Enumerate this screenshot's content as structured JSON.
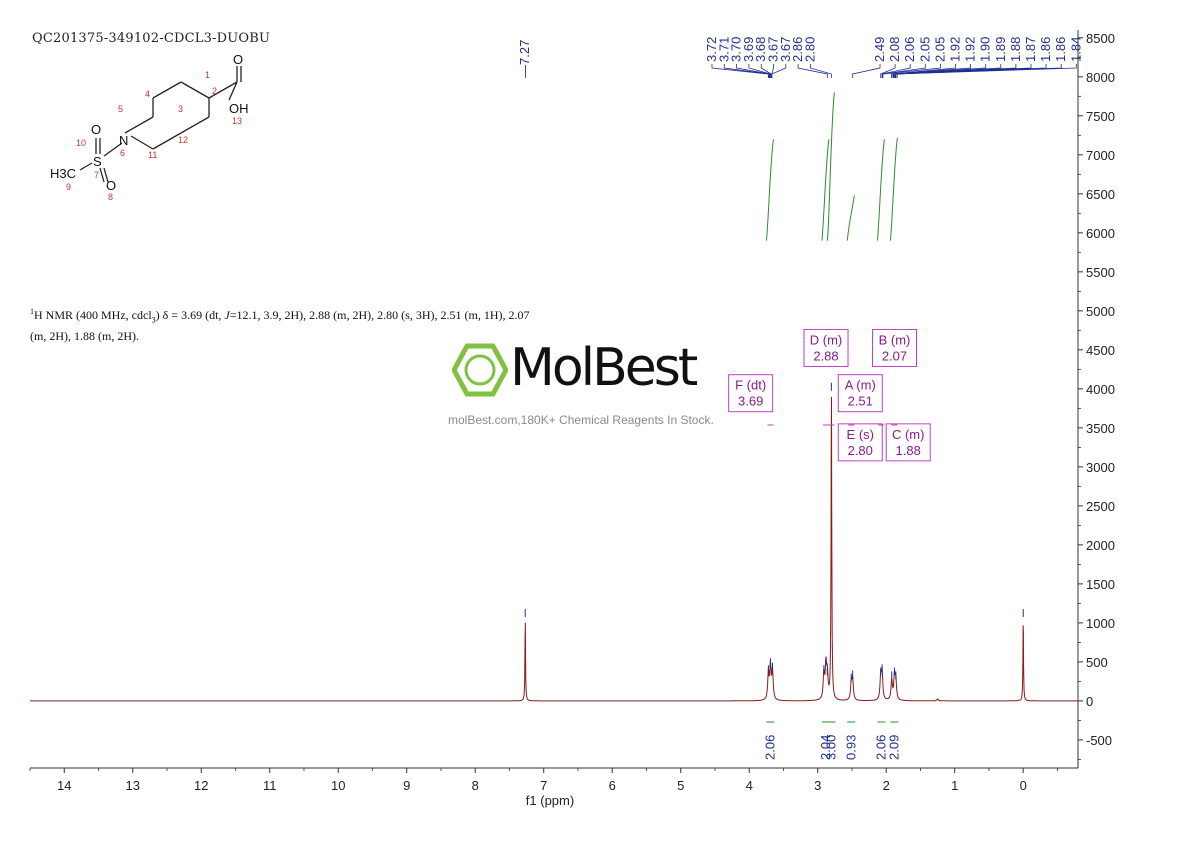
{
  "sample_id": "QC201375-349102-CDCL3-DUOBU",
  "nmr_description": {
    "prefix": "1",
    "text_a": "H NMR (400 MHz, cdcl",
    "sub": "3",
    "text_b": ") δ = 3.69 (dt, ",
    "italic": "J",
    "text_c": "=12.1, 3.9, 2H), 2.88 (m, 2H), 2.80 (s, 3H), 2.51 (m, 1H), 2.07",
    "line2": "(m, 2H), 1.88 (m, 2H)."
  },
  "logo": {
    "word": "MolBest",
    "tagline": "molBest.com,180K+ Chemical Reagents In Stock.",
    "color": "#7fc241"
  },
  "molecule": {
    "atoms": [
      {
        "label": "O",
        "num": "1"
      },
      {
        "label": "",
        "num": "2"
      },
      {
        "label": "",
        "num": "3"
      },
      {
        "label": "",
        "num": "4"
      },
      {
        "label": "",
        "num": "5"
      },
      {
        "label": "N",
        "num": "6"
      },
      {
        "label": "S",
        "num": "7"
      },
      {
        "label": "O",
        "num": "8"
      },
      {
        "label": "H3C",
        "num": "9"
      },
      {
        "label": "O",
        "num": "10"
      },
      {
        "label": "",
        "num": "11"
      },
      {
        "label": "",
        "num": "12"
      },
      {
        "label": "OH",
        "num": "13"
      }
    ]
  },
  "chart_data": {
    "type": "line",
    "xlabel": "f1 (ppm)",
    "ylabel": "",
    "xlim": [
      14.5,
      -0.8
    ],
    "ylim": [
      -860,
      8600
    ],
    "x_reversed": true,
    "x_ticks": [
      14,
      13,
      12,
      11,
      10,
      9,
      8,
      7,
      6,
      5,
      4,
      3,
      2,
      1,
      0
    ],
    "y_ticks": [
      -500,
      0,
      500,
      1000,
      1500,
      2000,
      2500,
      3000,
      3500,
      4000,
      4500,
      5000,
      5500,
      6000,
      6500,
      7000,
      7500,
      8000,
      8500
    ],
    "series": [
      {
        "color": "#8b1a1a",
        "peaks": [
          {
            "ppm": 7.27,
            "height": 1050
          },
          {
            "ppm": 3.72,
            "height": 330
          },
          {
            "ppm": 3.69,
            "height": 420
          },
          {
            "ppm": 3.66,
            "height": 360
          },
          {
            "ppm": 2.91,
            "height": 330
          },
          {
            "ppm": 2.88,
            "height": 420
          },
          {
            "ppm": 2.86,
            "height": 300
          },
          {
            "ppm": 2.8,
            "height": 3950
          },
          {
            "ppm": 2.51,
            "height": 220
          },
          {
            "ppm": 2.49,
            "height": 260
          },
          {
            "ppm": 2.08,
            "height": 300
          },
          {
            "ppm": 2.06,
            "height": 340
          },
          {
            "ppm": 1.92,
            "height": 250
          },
          {
            "ppm": 1.88,
            "height": 300
          },
          {
            "ppm": 1.86,
            "height": 250
          },
          {
            "ppm": 1.25,
            "height": 25
          },
          {
            "ppm": 0.0,
            "height": 1050
          }
        ]
      }
    ],
    "top_peak_labels": [
      "7.27",
      "3.72",
      "3.71",
      "3.70",
      "3.69",
      "3.68",
      "3.67",
      "3.67",
      "2.86",
      "2.80",
      "2.49",
      "2.08",
      "2.06",
      "2.05",
      "2.05",
      "1.92",
      "1.92",
      "1.90",
      "1.89",
      "1.88",
      "1.87",
      "1.86",
      "1.86",
      "1.84"
    ],
    "multiplets": [
      {
        "letter": "F",
        "type": "dt",
        "shift": "3.69",
        "label": "F (dt)"
      },
      {
        "letter": "D",
        "type": "m",
        "shift": "2.88",
        "label": "D (m)"
      },
      {
        "letter": "B",
        "type": "m",
        "shift": "2.07",
        "label": "B (m)"
      },
      {
        "letter": "A",
        "type": "m",
        "shift": "2.51",
        "label": "A (m)"
      },
      {
        "letter": "E",
        "type": "s",
        "shift": "2.80",
        "label": "E (s)"
      },
      {
        "letter": "C",
        "type": "m",
        "shift": "1.88",
        "label": "C (m)"
      }
    ],
    "integrals": [
      {
        "ppm": 3.69,
        "value": "2.06"
      },
      {
        "ppm": 2.88,
        "value": "2.04"
      },
      {
        "ppm": 2.8,
        "value": "3.00"
      },
      {
        "ppm": 2.51,
        "value": "0.93"
      },
      {
        "ppm": 2.07,
        "value": "2.06"
      },
      {
        "ppm": 1.88,
        "value": "2.09"
      }
    ],
    "colors": {
      "spectrum": "#8b1a1a",
      "peak_label": "#1f2f8f",
      "multiplet_box": "#c040c0",
      "integral": "#2e8b2e",
      "axis": "#333333"
    }
  }
}
